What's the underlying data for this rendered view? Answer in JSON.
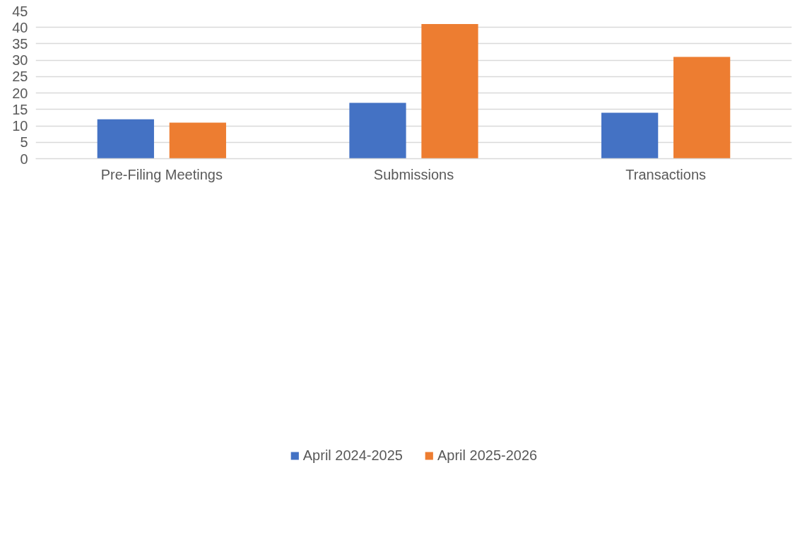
{
  "chart_data": {
    "type": "bar",
    "categories": [
      "Pre-Filing Meetings",
      "Submissions",
      "Transactions"
    ],
    "series": [
      {
        "name": "April 2024-2025",
        "color": "#4472c4",
        "values": [
          12,
          17,
          14
        ]
      },
      {
        "name": "April 2025-2026",
        "color": "#ed7d31",
        "values": [
          11,
          41,
          31
        ]
      }
    ],
    "ylim": [
      0,
      45
    ],
    "yticks": [
      0,
      5,
      10,
      15,
      20,
      25,
      30,
      35,
      40,
      45
    ],
    "grid": "y",
    "legend": "bottom"
  }
}
